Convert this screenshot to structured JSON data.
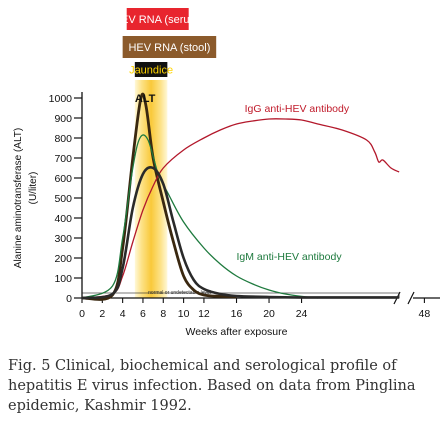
{
  "bars": [
    {
      "label": "HEV RNA (serum)",
      "color": "#e8252e",
      "text_color": "#ffffff",
      "x_start": 4.4,
      "x_end": 10.5
    },
    {
      "label": "HEV RNA (stool)",
      "color": "#8b5a2b",
      "text_color": "#ffffff",
      "x_start": 4.0,
      "x_end": 13.5
    },
    {
      "label": "Jaundice",
      "color": "#111111",
      "text_color": "#ffd400",
      "x_start": 5.2,
      "x_end": 8.4
    }
  ],
  "chart_data": {
    "type": "line",
    "ylabel": "Alanine aminotransferase (ALT)",
    "ylabel2": "(U/liter)",
    "xlabel": "Weeks after exposure",
    "x_ticks": [
      0,
      2,
      4,
      6,
      8,
      10,
      12,
      16,
      20,
      24,
      48
    ],
    "y_ticks": [
      0,
      100,
      200,
      300,
      400,
      500,
      600,
      700,
      800,
      900,
      1000
    ],
    "ylim": [
      0,
      1000
    ],
    "baseline_note": "normal or undetectable level",
    "jaundice_band": [
      5.2,
      8.4
    ],
    "series": [
      {
        "name": "ALT",
        "color": "#3a2810",
        "points": [
          [
            0,
            0
          ],
          [
            3,
            15
          ],
          [
            4,
            250
          ],
          [
            5,
            700
          ],
          [
            5.8,
            1000
          ],
          [
            6.3,
            960
          ],
          [
            7,
            700
          ],
          [
            8,
            480
          ],
          [
            9,
            280
          ],
          [
            10,
            110
          ],
          [
            11,
            40
          ],
          [
            12,
            15
          ],
          [
            14,
            8
          ],
          [
            16,
            5
          ]
        ]
      },
      {
        "name": "IgG anti-HEV antibody",
        "color": "#b3182b",
        "points": [
          [
            0,
            0
          ],
          [
            3,
            20
          ],
          [
            4,
            110
          ],
          [
            5,
            280
          ],
          [
            6,
            440
          ],
          [
            7,
            560
          ],
          [
            8,
            650
          ],
          [
            10,
            740
          ],
          [
            12,
            800
          ],
          [
            14,
            840
          ],
          [
            16,
            870
          ],
          [
            18,
            885
          ],
          [
            20,
            895
          ],
          [
            22,
            895
          ],
          [
            24,
            890
          ],
          [
            26,
            870
          ],
          [
            29,
            840
          ],
          [
            32,
            790
          ],
          [
            33,
            730
          ],
          [
            33.5,
            680
          ],
          [
            34,
            690
          ],
          [
            35,
            650
          ],
          [
            36,
            630
          ]
        ]
      },
      {
        "name": "IgM anti-HEV antibody",
        "color": "#1e7a3e",
        "points": [
          [
            0,
            0
          ],
          [
            3,
            60
          ],
          [
            4,
            300
          ],
          [
            5,
            650
          ],
          [
            5.7,
            800
          ],
          [
            6.5,
            790
          ],
          [
            7.5,
            620
          ],
          [
            8.5,
            520
          ],
          [
            10,
            380
          ],
          [
            12,
            250
          ],
          [
            14,
            170
          ],
          [
            16,
            110
          ],
          [
            18,
            70
          ],
          [
            20,
            40
          ],
          [
            22,
            20
          ],
          [
            24,
            8
          ],
          [
            26,
            0
          ]
        ]
      },
      {
        "name": "",
        "color": "#2a2a2a",
        "points": [
          [
            0,
            0
          ],
          [
            3,
            20
          ],
          [
            4,
            150
          ],
          [
            5,
            450
          ],
          [
            6,
            620
          ],
          [
            7,
            650
          ],
          [
            8,
            570
          ],
          [
            9,
            380
          ],
          [
            10,
            200
          ],
          [
            11,
            90
          ],
          [
            12,
            45
          ],
          [
            14,
            20
          ],
          [
            16,
            10
          ],
          [
            20,
            5
          ],
          [
            24,
            3
          ],
          [
            32,
            3
          ],
          [
            36,
            3
          ]
        ]
      }
    ],
    "annotations": [
      {
        "text": "ALT",
        "x": 5.2,
        "y": 1000,
        "color": "#111111"
      },
      {
        "text": "IgG anti-HEV antibody",
        "x": 17,
        "y": 950,
        "color": "#c01a2a"
      },
      {
        "text": "IgM anti-HEV antibody",
        "x": 16,
        "y": 210,
        "color": "#1e7a3e"
      }
    ]
  },
  "caption": {
    "line1": "Fig. 5  Clinical, biochemical and serological profile of",
    "line2": "hepatitis E virus infection. Based on data from Pinglina",
    "line3": "epidemic, Kashmir 1992."
  }
}
